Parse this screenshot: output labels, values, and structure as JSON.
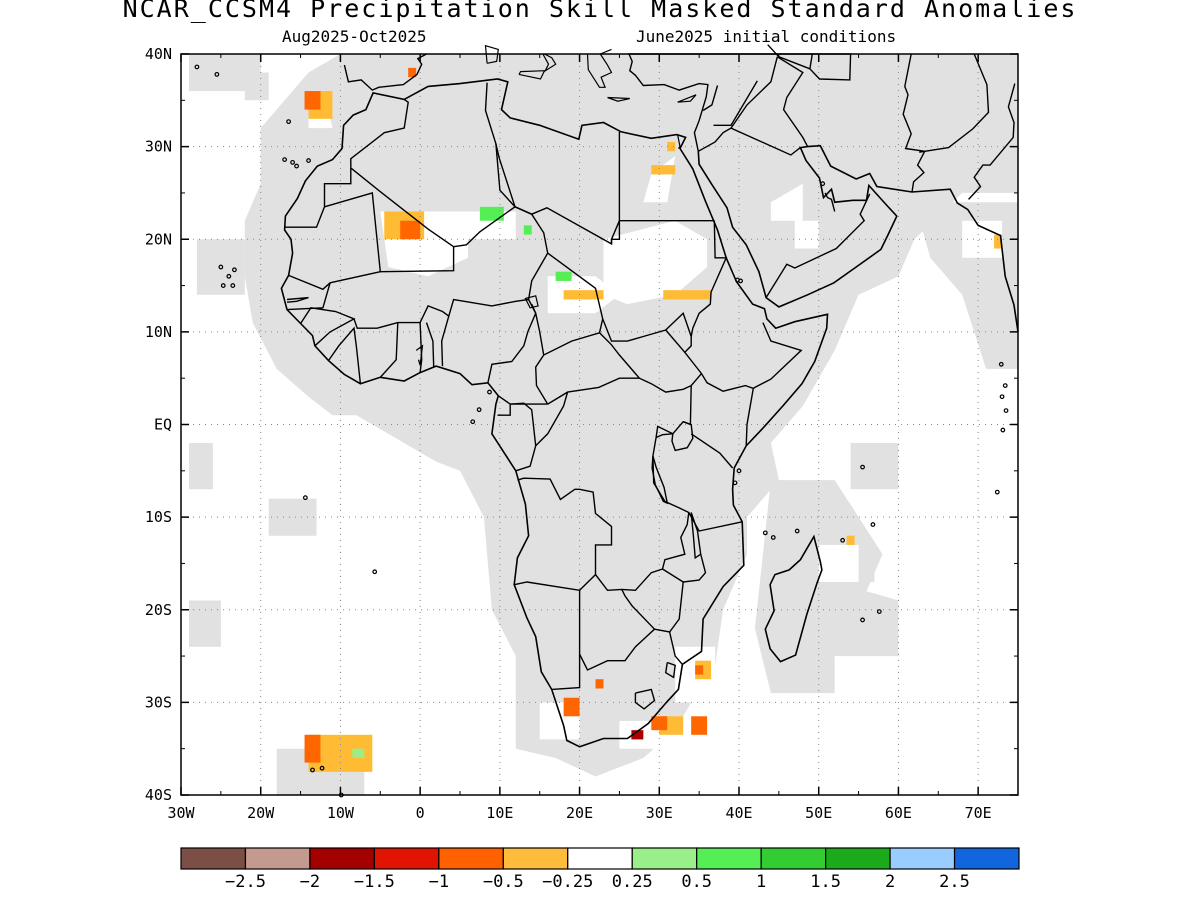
{
  "header": {
    "title": "NCAR_CCSM4 Precipitation Skill Masked Standard Anomalies",
    "period": "Aug2025-Oct2025",
    "initial_conditions": "June2025 initial conditions"
  },
  "map": {
    "lon_range": [
      -30,
      75
    ],
    "lat_range": [
      -40,
      40
    ],
    "lat_ticks": [
      {
        "value": 40,
        "label": "40N"
      },
      {
        "value": 30,
        "label": "30N"
      },
      {
        "value": 20,
        "label": "20N"
      },
      {
        "value": 10,
        "label": "10N"
      },
      {
        "value": 0,
        "label": "EQ"
      },
      {
        "value": -10,
        "label": "10S"
      },
      {
        "value": -20,
        "label": "20S"
      },
      {
        "value": -30,
        "label": "30S"
      },
      {
        "value": -40,
        "label": "40S"
      }
    ],
    "lon_ticks": [
      {
        "value": -30,
        "label": "30W"
      },
      {
        "value": -20,
        "label": "20W"
      },
      {
        "value": -10,
        "label": "10W"
      },
      {
        "value": 0,
        "label": "0"
      },
      {
        "value": 10,
        "label": "10E"
      },
      {
        "value": 20,
        "label": "20E"
      },
      {
        "value": 30,
        "label": "30E"
      },
      {
        "value": 40,
        "label": "40E"
      },
      {
        "value": 50,
        "label": "50E"
      },
      {
        "value": 60,
        "label": "60E"
      },
      {
        "value": 70,
        "label": "70E"
      }
    ],
    "grid": "dotted",
    "mask_color": "#e1e1e1",
    "coastline_color": "#000000"
  },
  "anomaly_patches": [
    {
      "lon": -14,
      "lat": 33,
      "w": 3,
      "h": 3,
      "color": "#ffbb33"
    },
    {
      "lon": -14.5,
      "lat": 34,
      "w": 2,
      "h": 2,
      "color": "#ff6600"
    },
    {
      "lon": -1.5,
      "lat": 37.5,
      "w": 1,
      "h": 1,
      "color": "#ff6600"
    },
    {
      "lon": -4.5,
      "lat": 20,
      "w": 5,
      "h": 3,
      "color": "#ffbb33"
    },
    {
      "lon": -2.5,
      "lat": 20,
      "w": 2.5,
      "h": 2,
      "color": "#ff6600"
    },
    {
      "lon": 7.5,
      "lat": 22,
      "w": 3,
      "h": 1.5,
      "color": "#55ee55"
    },
    {
      "lon": 13,
      "lat": 20.5,
      "w": 1,
      "h": 1,
      "color": "#55ee55"
    },
    {
      "lon": 18,
      "lat": 13.5,
      "w": 5,
      "h": 1,
      "color": "#ffbb33"
    },
    {
      "lon": 17,
      "lat": 15.5,
      "w": 2,
      "h": 1,
      "color": "#55ee55"
    },
    {
      "lon": 30.5,
      "lat": 13.5,
      "w": 6,
      "h": 1,
      "color": "#ffbb33"
    },
    {
      "lon": 29,
      "lat": 27,
      "w": 3,
      "h": 1,
      "color": "#ffbb33"
    },
    {
      "lon": 31,
      "lat": 29.5,
      "w": 1,
      "h": 1,
      "color": "#ffbb33"
    },
    {
      "lon": 72,
      "lat": 19,
      "w": 1,
      "h": 1.5,
      "color": "#ffbb33"
    },
    {
      "lon": 53.5,
      "lat": -13,
      "w": 1,
      "h": 1,
      "color": "#ffbb33"
    },
    {
      "lon": 34.5,
      "lat": -27.5,
      "w": 2,
      "h": 2,
      "color": "#ffbb33"
    },
    {
      "lon": 34.5,
      "lat": -27,
      "w": 1,
      "h": 1,
      "color": "#ff6600"
    },
    {
      "lon": 22,
      "lat": -28.5,
      "w": 1,
      "h": 1,
      "color": "#ff6600"
    },
    {
      "lon": 18,
      "lat": -31.5,
      "w": 2,
      "h": 2,
      "color": "#ff6600"
    },
    {
      "lon": 30,
      "lat": -33.5,
      "w": 3,
      "h": 2,
      "color": "#ffbb33"
    },
    {
      "lon": 29,
      "lat": -33,
      "w": 2,
      "h": 1.5,
      "color": "#ff6600"
    },
    {
      "lon": 26.5,
      "lat": -34,
      "w": 1.5,
      "h": 1,
      "color": "#aa0000"
    },
    {
      "lon": 34,
      "lat": -33.5,
      "w": 2,
      "h": 2,
      "color": "#ff6600"
    },
    {
      "lon": -14,
      "lat": -37.5,
      "w": 8,
      "h": 4,
      "color": "#ffbb33"
    },
    {
      "lon": -14.5,
      "lat": -36.5,
      "w": 2,
      "h": 3,
      "color": "#ff6600"
    },
    {
      "lon": -8.5,
      "lat": -36,
      "w": 1.5,
      "h": 1,
      "color": "#99ee88"
    }
  ],
  "colorbar": {
    "colors": [
      "#7b4f45",
      "#c49a90",
      "#a50000",
      "#e01400",
      "#ff6000",
      "#ffbb3a",
      "#ffffff",
      "#99f08a",
      "#55ee55",
      "#33cc33",
      "#1aaa1a",
      "#99ccff",
      "#1166dd"
    ],
    "labels": [
      "-2.5",
      "-2",
      "-1.5",
      "-1",
      "-0.5",
      "-0.25",
      "0.25",
      "0.5",
      "1",
      "1.5",
      "2",
      "2.5"
    ]
  }
}
